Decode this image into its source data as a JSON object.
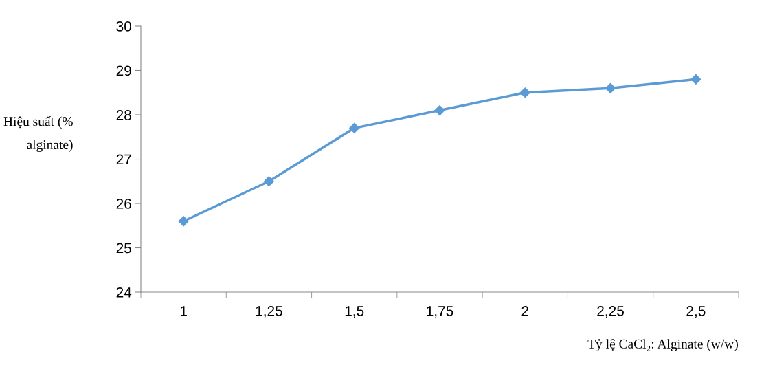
{
  "chart_data": {
    "type": "line",
    "xlabel": "Tỷ lệ CaCl₂: Alginate (w/w)",
    "ylabel": "Hiệu suất (% alginate)",
    "categories": [
      "1",
      "1,25",
      "1,5",
      "1,75",
      "2",
      "2,25",
      "2,5"
    ],
    "series": [
      {
        "color": "#5b9bd5",
        "values": [
          25.6,
          26.5,
          27.7,
          28.1,
          28.5,
          28.6,
          28.8
        ]
      }
    ],
    "ylim": [
      24,
      30
    ],
    "yticks": [
      24,
      25,
      26,
      27,
      28,
      29,
      30
    ],
    "marker": "diamond",
    "line_style": "solid",
    "grid": false,
    "legend": false
  }
}
